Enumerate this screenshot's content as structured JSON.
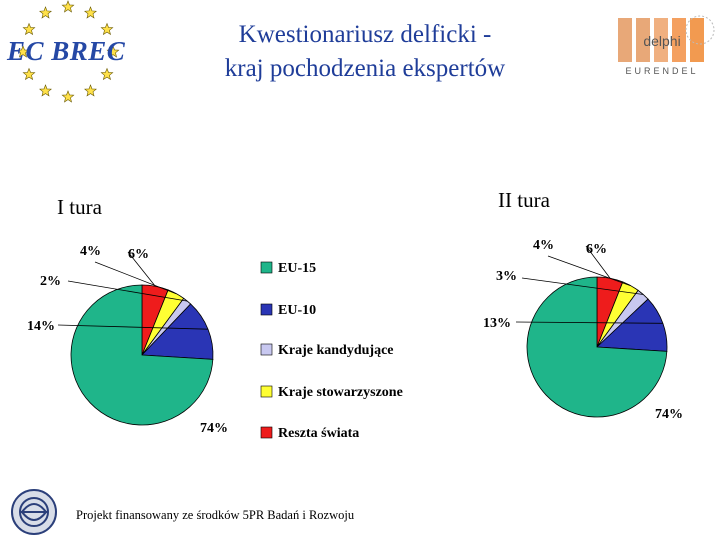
{
  "logo_left_text": "EC BREC",
  "logo_right": {
    "top_text": "delphi",
    "bottom_text": "EURENDEL"
  },
  "title_line1": "Kwestionariusz delficki -",
  "title_line2": "kraj pochodzenia ekspertów",
  "footer": "Projekt finansowany ze środków 5PR Badań i Rozwoju",
  "colors": {
    "title": "#1f3d99",
    "eu15": "#1fb58a",
    "eu10": "#2a35b5",
    "candidates": "#c8c8f0",
    "associated": "#ffff33",
    "rest": "#ee1c1c"
  },
  "chart_data": [
    {
      "type": "pie",
      "title": "I tura",
      "categories": [
        "EU-15",
        "EU-10",
        "Kraje kandydujące",
        "Kraje stowarzyszone",
        "Reszta świata"
      ],
      "values": [
        74,
        14,
        2,
        4,
        6
      ],
      "labels": [
        "74%",
        "14%",
        "2%",
        "4%",
        "6%"
      ]
    },
    {
      "type": "pie",
      "title": "II tura",
      "categories": [
        "EU-15",
        "EU-10",
        "Kraje kandydujące",
        "Kraje stowarzyszone",
        "Reszta świata"
      ],
      "values": [
        74,
        13,
        3,
        4,
        6
      ],
      "labels": [
        "74%",
        "13%",
        "3%",
        "4%",
        "6%"
      ]
    }
  ],
  "legend": {
    "items": [
      "EU-15",
      "EU-10",
      "Kraje kandydujące",
      "Kraje stowarzyszone",
      "Reszta świata"
    ],
    "colors": [
      "#1fb58a",
      "#2a35b5",
      "#c8c8f0",
      "#ffff33",
      "#ee1c1c"
    ]
  }
}
